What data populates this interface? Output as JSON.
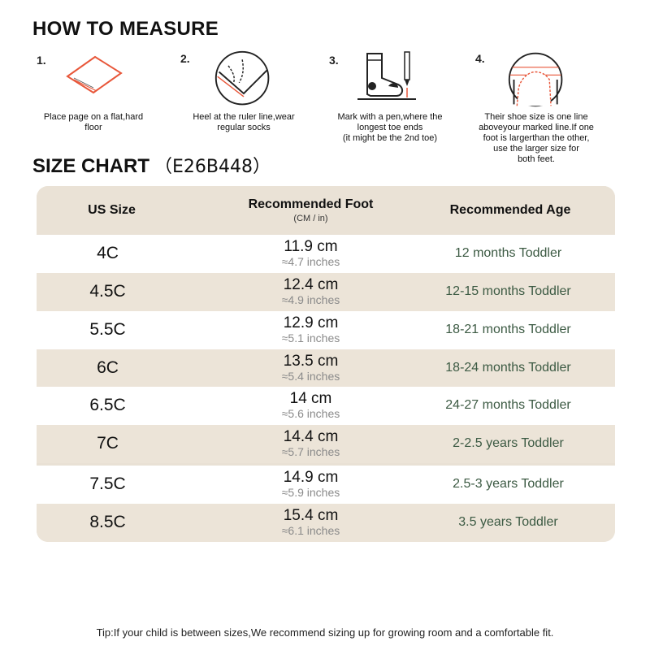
{
  "how_to_measure": {
    "title": "HOW TO MEASURE",
    "steps": [
      {
        "num": "1.",
        "caption": "Place page on a flat,hard\nfloor"
      },
      {
        "num": "2.",
        "caption": "Heel at the ruler line,wear\nregular socks"
      },
      {
        "num": "3.",
        "caption": "Mark with a pen,where the\nlongest toe ends\n(it might be the 2nd toe)"
      },
      {
        "num": "4.",
        "caption": "Their shoe size is one line\naboveyour marked line.If one\nfoot is largerthan the other,\nuse the larger size for\nboth feet."
      }
    ]
  },
  "size_chart": {
    "title": "SIZE CHART",
    "code": "（E26B448）",
    "headers": {
      "us_size": "US Size",
      "foot": "Recommended Foot",
      "foot_sub": "(CM / in)",
      "age": "Recommended Age"
    },
    "rows": [
      {
        "size": "4C",
        "cm": "11.9 cm",
        "inches": "≈4.7 inches",
        "age": "12 months Toddler"
      },
      {
        "size": "4.5C",
        "cm": "12.4 cm",
        "inches": "≈4.9 inches",
        "age": "12-15 months Toddler"
      },
      {
        "size": "5.5C",
        "cm": "12.9 cm",
        "inches": "≈5.1 inches",
        "age": "18-21 months Toddler"
      },
      {
        "size": "6C",
        "cm": "13.5 cm",
        "inches": "≈5.4 inches",
        "age": "18-24 months Toddler"
      },
      {
        "size": "6.5C",
        "cm": "14 cm",
        "inches": "≈5.6 inches",
        "age": "24-27 months Toddler"
      },
      {
        "size": "7C",
        "cm": "14.4 cm",
        "inches": "≈5.7 inches",
        "age": "2-2.5 years Toddler"
      },
      {
        "size": "7.5C",
        "cm": "14.9 cm",
        "inches": "≈5.9 inches",
        "age": "2.5-3 years Toddler"
      },
      {
        "size": "8.5C",
        "cm": "15.4 cm",
        "inches": "≈6.1 inches",
        "age": "3.5 years Toddler"
      }
    ]
  },
  "tip": "Tip:If your child is between sizes,We recommend sizing up for growing room and a comfortable fit.",
  "colors": {
    "accent": "#e8573a",
    "header_bg": "#eae2d6",
    "age_text": "#3c5a43"
  }
}
